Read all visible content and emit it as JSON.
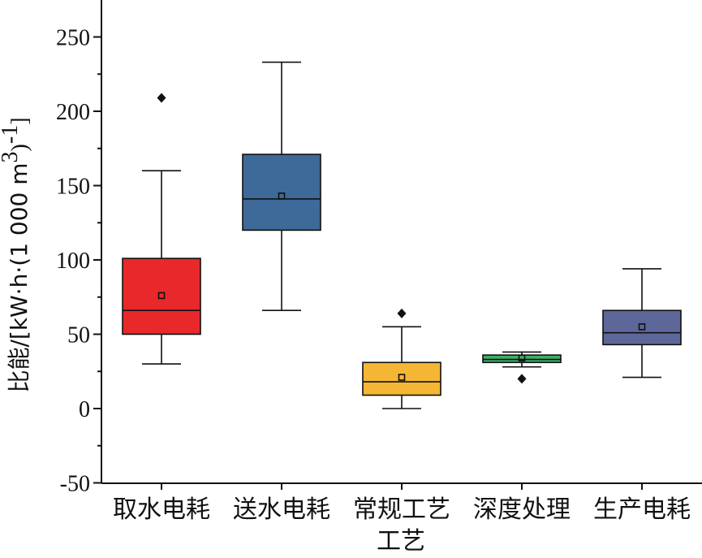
{
  "chart_data": {
    "type": "box",
    "xlabel": "工艺",
    "ylabel": {
      "prefix": "比能/[kW·h·(1 000 m",
      "sup1": "3",
      "mid": ")",
      "sup2": "-1",
      "suffix": "]"
    },
    "ylim": [
      -50,
      270
    ],
    "yticks": [
      -50,
      0,
      50,
      100,
      150,
      200,
      250
    ],
    "categories": [
      "取水电耗",
      "送水电耗",
      "常规工艺",
      "深度处理",
      "生产电耗"
    ],
    "boxes": [
      {
        "category": "取水电耗",
        "min": 30,
        "q1": 50,
        "median": 66,
        "q3": 101,
        "max": 160,
        "mean": 76,
        "outliers": [
          209
        ],
        "color": "#e8282a"
      },
      {
        "category": "送水电耗",
        "min": 66,
        "q1": 120,
        "median": 141,
        "q3": 171,
        "max": 233,
        "mean": 143,
        "outliers": [],
        "color": "#3d6a99"
      },
      {
        "category": "常规工艺",
        "min": 0,
        "q1": 9,
        "median": 18,
        "q3": 31,
        "max": 55,
        "mean": 21,
        "outliers": [
          64
        ],
        "color": "#f5b635"
      },
      {
        "category": "深度处理",
        "min": 28,
        "q1": 31,
        "median": 33,
        "q3": 36,
        "max": 38,
        "mean": 34,
        "outliers": [
          20
        ],
        "color": "#3fae6a"
      },
      {
        "category": "生产电耗",
        "min": 21,
        "q1": 43,
        "median": 51,
        "q3": 66,
        "max": 94,
        "mean": 55,
        "outliers": [],
        "color": "#5e6799"
      }
    ]
  }
}
